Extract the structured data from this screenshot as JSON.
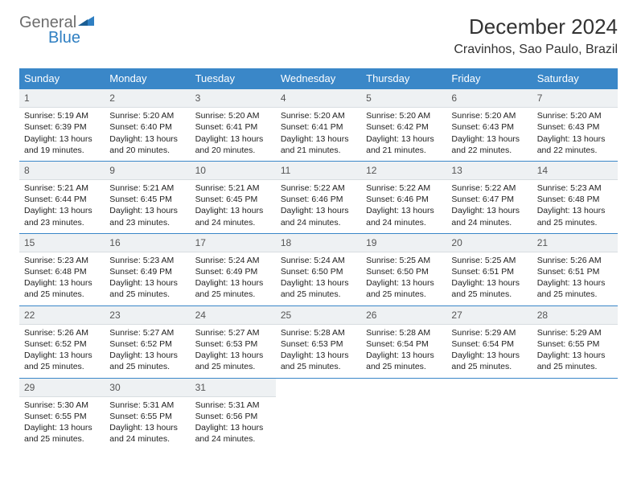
{
  "brand": {
    "line1": "General",
    "line2": "Blue"
  },
  "title": "December 2024",
  "location": "Cravinhos, Sao Paulo, Brazil",
  "colors": {
    "header_bg": "#3a87c8",
    "header_text": "#ffffff",
    "daynum_bg": "#eef1f3",
    "border": "#3a87c8",
    "brand_gray": "#6d6d6d",
    "brand_blue": "#2f7fc2"
  },
  "columns": [
    "Sunday",
    "Monday",
    "Tuesday",
    "Wednesday",
    "Thursday",
    "Friday",
    "Saturday"
  ],
  "days": [
    {
      "n": 1,
      "sunrise": "5:19 AM",
      "sunset": "6:39 PM",
      "daylight": "13 hours and 19 minutes."
    },
    {
      "n": 2,
      "sunrise": "5:20 AM",
      "sunset": "6:40 PM",
      "daylight": "13 hours and 20 minutes."
    },
    {
      "n": 3,
      "sunrise": "5:20 AM",
      "sunset": "6:41 PM",
      "daylight": "13 hours and 20 minutes."
    },
    {
      "n": 4,
      "sunrise": "5:20 AM",
      "sunset": "6:41 PM",
      "daylight": "13 hours and 21 minutes."
    },
    {
      "n": 5,
      "sunrise": "5:20 AM",
      "sunset": "6:42 PM",
      "daylight": "13 hours and 21 minutes."
    },
    {
      "n": 6,
      "sunrise": "5:20 AM",
      "sunset": "6:43 PM",
      "daylight": "13 hours and 22 minutes."
    },
    {
      "n": 7,
      "sunrise": "5:20 AM",
      "sunset": "6:43 PM",
      "daylight": "13 hours and 22 minutes."
    },
    {
      "n": 8,
      "sunrise": "5:21 AM",
      "sunset": "6:44 PM",
      "daylight": "13 hours and 23 minutes."
    },
    {
      "n": 9,
      "sunrise": "5:21 AM",
      "sunset": "6:45 PM",
      "daylight": "13 hours and 23 minutes."
    },
    {
      "n": 10,
      "sunrise": "5:21 AM",
      "sunset": "6:45 PM",
      "daylight": "13 hours and 24 minutes."
    },
    {
      "n": 11,
      "sunrise": "5:22 AM",
      "sunset": "6:46 PM",
      "daylight": "13 hours and 24 minutes."
    },
    {
      "n": 12,
      "sunrise": "5:22 AM",
      "sunset": "6:46 PM",
      "daylight": "13 hours and 24 minutes."
    },
    {
      "n": 13,
      "sunrise": "5:22 AM",
      "sunset": "6:47 PM",
      "daylight": "13 hours and 24 minutes."
    },
    {
      "n": 14,
      "sunrise": "5:23 AM",
      "sunset": "6:48 PM",
      "daylight": "13 hours and 25 minutes."
    },
    {
      "n": 15,
      "sunrise": "5:23 AM",
      "sunset": "6:48 PM",
      "daylight": "13 hours and 25 minutes."
    },
    {
      "n": 16,
      "sunrise": "5:23 AM",
      "sunset": "6:49 PM",
      "daylight": "13 hours and 25 minutes."
    },
    {
      "n": 17,
      "sunrise": "5:24 AM",
      "sunset": "6:49 PM",
      "daylight": "13 hours and 25 minutes."
    },
    {
      "n": 18,
      "sunrise": "5:24 AM",
      "sunset": "6:50 PM",
      "daylight": "13 hours and 25 minutes."
    },
    {
      "n": 19,
      "sunrise": "5:25 AM",
      "sunset": "6:50 PM",
      "daylight": "13 hours and 25 minutes."
    },
    {
      "n": 20,
      "sunrise": "5:25 AM",
      "sunset": "6:51 PM",
      "daylight": "13 hours and 25 minutes."
    },
    {
      "n": 21,
      "sunrise": "5:26 AM",
      "sunset": "6:51 PM",
      "daylight": "13 hours and 25 minutes."
    },
    {
      "n": 22,
      "sunrise": "5:26 AM",
      "sunset": "6:52 PM",
      "daylight": "13 hours and 25 minutes."
    },
    {
      "n": 23,
      "sunrise": "5:27 AM",
      "sunset": "6:52 PM",
      "daylight": "13 hours and 25 minutes."
    },
    {
      "n": 24,
      "sunrise": "5:27 AM",
      "sunset": "6:53 PM",
      "daylight": "13 hours and 25 minutes."
    },
    {
      "n": 25,
      "sunrise": "5:28 AM",
      "sunset": "6:53 PM",
      "daylight": "13 hours and 25 minutes."
    },
    {
      "n": 26,
      "sunrise": "5:28 AM",
      "sunset": "6:54 PM",
      "daylight": "13 hours and 25 minutes."
    },
    {
      "n": 27,
      "sunrise": "5:29 AM",
      "sunset": "6:54 PM",
      "daylight": "13 hours and 25 minutes."
    },
    {
      "n": 28,
      "sunrise": "5:29 AM",
      "sunset": "6:55 PM",
      "daylight": "13 hours and 25 minutes."
    },
    {
      "n": 29,
      "sunrise": "5:30 AM",
      "sunset": "6:55 PM",
      "daylight": "13 hours and 25 minutes."
    },
    {
      "n": 30,
      "sunrise": "5:31 AM",
      "sunset": "6:55 PM",
      "daylight": "13 hours and 24 minutes."
    },
    {
      "n": 31,
      "sunrise": "5:31 AM",
      "sunset": "6:56 PM",
      "daylight": "13 hours and 24 minutes."
    }
  ],
  "first_weekday_offset": 0,
  "labels": {
    "sunrise": "Sunrise:",
    "sunset": "Sunset:",
    "daylight": "Daylight:"
  }
}
